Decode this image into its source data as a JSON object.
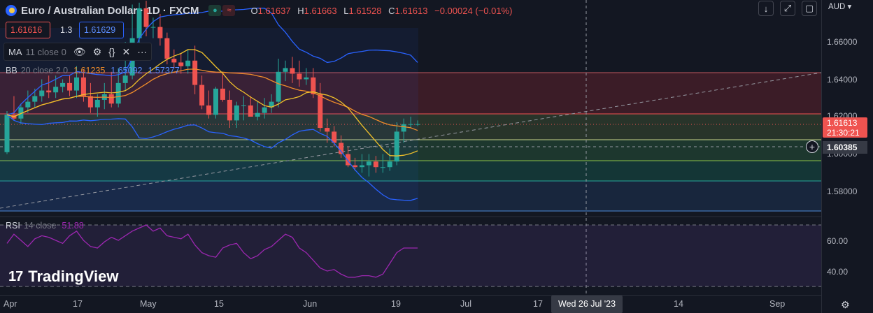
{
  "header": {
    "symbol_title": "Euro / Australian Dollar · 1D · FXCM",
    "open_label": "O",
    "open": "1.61637",
    "high_label": "H",
    "high": "1.61663",
    "low_label": "L",
    "low": "1.61528",
    "close_label": "C",
    "close": "1.61613",
    "change": "−0.00024 (−0.01%)"
  },
  "trade": {
    "sell_price": "1.61616",
    "spread": "1.3",
    "buy_price": "1.61629"
  },
  "indicators": {
    "ma": {
      "label": "MA",
      "params": "11 close 0",
      "icons": [
        "eye-icon",
        "settings-icon",
        "source-code-icon",
        "close-icon",
        "more-icon"
      ]
    },
    "bb": {
      "label": "BB",
      "params": "20 close 2 0",
      "basis": "1.61235",
      "upper": "1.65092",
      "lower": "1.57377"
    },
    "rsi": {
      "label": "RSI",
      "params": "14 close",
      "value": "51.88"
    }
  },
  "toolbar": {
    "buttons": [
      "arrow-down-icon",
      "fullscreen-icon",
      "maximize-icon"
    ]
  },
  "price_axis": {
    "currency": "AUD",
    "ticks": [
      "1.66000",
      "1.64000",
      "1.62000",
      "1.60000",
      "1.58000"
    ],
    "last_price": "1.61613",
    "countdown": "21:30:21",
    "crosshair_price": "1.60385"
  },
  "rsi_axis": {
    "ticks": [
      "60.00",
      "40.00"
    ]
  },
  "time_axis": {
    "ticks": [
      "Apr",
      "17",
      "May",
      "15",
      "Jun",
      "19",
      "Jul",
      "17",
      "14",
      "Sep"
    ],
    "crosshair_date": "Wed 26 Jul '23"
  },
  "brand": {
    "logo": "TradingView"
  },
  "colors": {
    "up": "#26a69a",
    "down": "#ef5350",
    "ma": "#f0c02a",
    "bb_basis": "#f08c2a",
    "bb_band": "#2962ff",
    "rsi": "#9c27b0",
    "background": "#131722"
  },
  "chart_data": [
    {
      "type": "candlestick",
      "title": "Euro / Australian Dollar · 1D · FXCM",
      "ylim": [
        1.568,
        1.676
      ],
      "x": [
        "2023-04-03",
        "2023-04-04",
        "2023-04-05",
        "2023-04-06",
        "2023-04-07",
        "2023-04-10",
        "2023-04-11",
        "2023-04-12",
        "2023-04-13",
        "2023-04-14",
        "2023-04-17",
        "2023-04-18",
        "2023-04-19",
        "2023-04-20",
        "2023-04-21",
        "2023-04-24",
        "2023-04-25",
        "2023-04-26",
        "2023-04-27",
        "2023-04-28",
        "2023-05-01",
        "2023-05-02",
        "2023-05-03",
        "2023-05-04",
        "2023-05-05",
        "2023-05-08",
        "2023-05-09",
        "2023-05-10",
        "2023-05-11",
        "2023-05-12",
        "2023-05-15",
        "2023-05-16",
        "2023-05-17",
        "2023-05-18",
        "2023-05-19",
        "2023-05-22",
        "2023-05-23",
        "2023-05-24",
        "2023-05-25",
        "2023-05-26",
        "2023-05-29",
        "2023-05-30",
        "2023-05-31",
        "2023-06-01",
        "2023-06-02",
        "2023-06-05",
        "2023-06-06",
        "2023-06-07",
        "2023-06-08",
        "2023-06-09",
        "2023-06-12",
        "2023-06-13",
        "2023-06-14",
        "2023-06-15",
        "2023-06-16",
        "2023-06-19",
        "2023-06-20",
        "2023-06-21",
        "2023-06-22",
        "2023-06-23"
      ],
      "series": [
        {
          "open": [
            1.601,
            1.621,
            1.619,
            1.625,
            1.628,
            1.631,
            1.634,
            1.633,
            1.636,
            1.638,
            1.634,
            1.641,
            1.631,
            1.625,
            1.629,
            1.632,
            1.627,
            1.638,
            1.642,
            1.662,
            1.678,
            1.668,
            1.668,
            1.662,
            1.651,
            1.649,
            1.647,
            1.65,
            1.637,
            1.626,
            1.621,
            1.635,
            1.629,
            1.618,
            1.626,
            1.626,
            1.62,
            1.622,
            1.625,
            1.628,
            1.644,
            1.646,
            1.643,
            1.64,
            1.641,
            1.632,
            1.614,
            1.612,
            1.606,
            1.6,
            1.594,
            1.593,
            1.594,
            1.596,
            1.593,
            1.593,
            1.596,
            1.612,
            1.616,
            1.616
          ],
          "high": [
            1.623,
            1.631,
            1.627,
            1.634,
            1.635,
            1.64,
            1.642,
            1.642,
            1.64,
            1.642,
            1.647,
            1.645,
            1.638,
            1.632,
            1.638,
            1.644,
            1.646,
            1.66,
            1.68,
            1.681,
            1.682,
            1.673,
            1.675,
            1.665,
            1.656,
            1.654,
            1.656,
            1.658,
            1.642,
            1.634,
            1.636,
            1.644,
            1.634,
            1.628,
            1.631,
            1.631,
            1.628,
            1.63,
            1.632,
            1.651,
            1.65,
            1.652,
            1.65,
            1.646,
            1.646,
            1.638,
            1.619,
            1.615,
            1.61,
            1.604,
            1.598,
            1.6,
            1.6,
            1.599,
            1.6,
            1.603,
            1.617,
            1.619,
            1.62,
            1.618
          ],
          "low": [
            1.6,
            1.618,
            1.616,
            1.622,
            1.625,
            1.628,
            1.63,
            1.63,
            1.633,
            1.631,
            1.63,
            1.628,
            1.622,
            1.62,
            1.624,
            1.625,
            1.625,
            1.634,
            1.64,
            1.658,
            1.663,
            1.662,
            1.658,
            1.648,
            1.646,
            1.643,
            1.643,
            1.632,
            1.624,
            1.619,
            1.619,
            1.628,
            1.614,
            1.614,
            1.618,
            1.62,
            1.618,
            1.619,
            1.622,
            1.625,
            1.639,
            1.638,
            1.636,
            1.637,
            1.63,
            1.612,
            1.606,
            1.604,
            1.598,
            1.593,
            1.591,
            1.59,
            1.588,
            1.59,
            1.59,
            1.591,
            1.594,
            1.606,
            1.614,
            1.615
          ],
          "close": [
            1.621,
            1.619,
            1.625,
            1.628,
            1.631,
            1.634,
            1.633,
            1.636,
            1.638,
            1.634,
            1.641,
            1.631,
            1.625,
            1.629,
            1.632,
            1.627,
            1.638,
            1.642,
            1.662,
            1.678,
            1.668,
            1.668,
            1.662,
            1.651,
            1.649,
            1.647,
            1.65,
            1.637,
            1.626,
            1.621,
            1.635,
            1.629,
            1.618,
            1.626,
            1.626,
            1.62,
            1.622,
            1.625,
            1.628,
            1.644,
            1.646,
            1.643,
            1.64,
            1.641,
            1.632,
            1.614,
            1.612,
            1.606,
            1.6,
            1.594,
            1.593,
            1.594,
            1.596,
            1.593,
            1.593,
            1.596,
            1.612,
            1.616,
            1.616,
            1.616
          ]
        }
      ]
    },
    {
      "type": "line",
      "title": "RSI 14 close",
      "ylim": [
        30,
        72
      ],
      "series": [
        {
          "name": "RSI",
          "values": [
            58,
            64,
            60,
            56,
            61,
            63,
            62,
            60,
            58,
            63,
            66,
            60,
            56,
            55,
            59,
            62,
            60,
            63,
            66,
            68,
            70,
            66,
            68,
            63,
            62,
            61,
            64,
            57,
            52,
            50,
            49,
            55,
            57,
            58,
            52,
            48,
            50,
            54,
            56,
            60,
            64,
            62,
            55,
            52,
            47,
            42,
            40,
            41,
            38,
            36,
            36,
            37,
            37,
            36,
            38,
            45,
            52,
            55,
            55,
            55
          ]
        }
      ]
    }
  ]
}
